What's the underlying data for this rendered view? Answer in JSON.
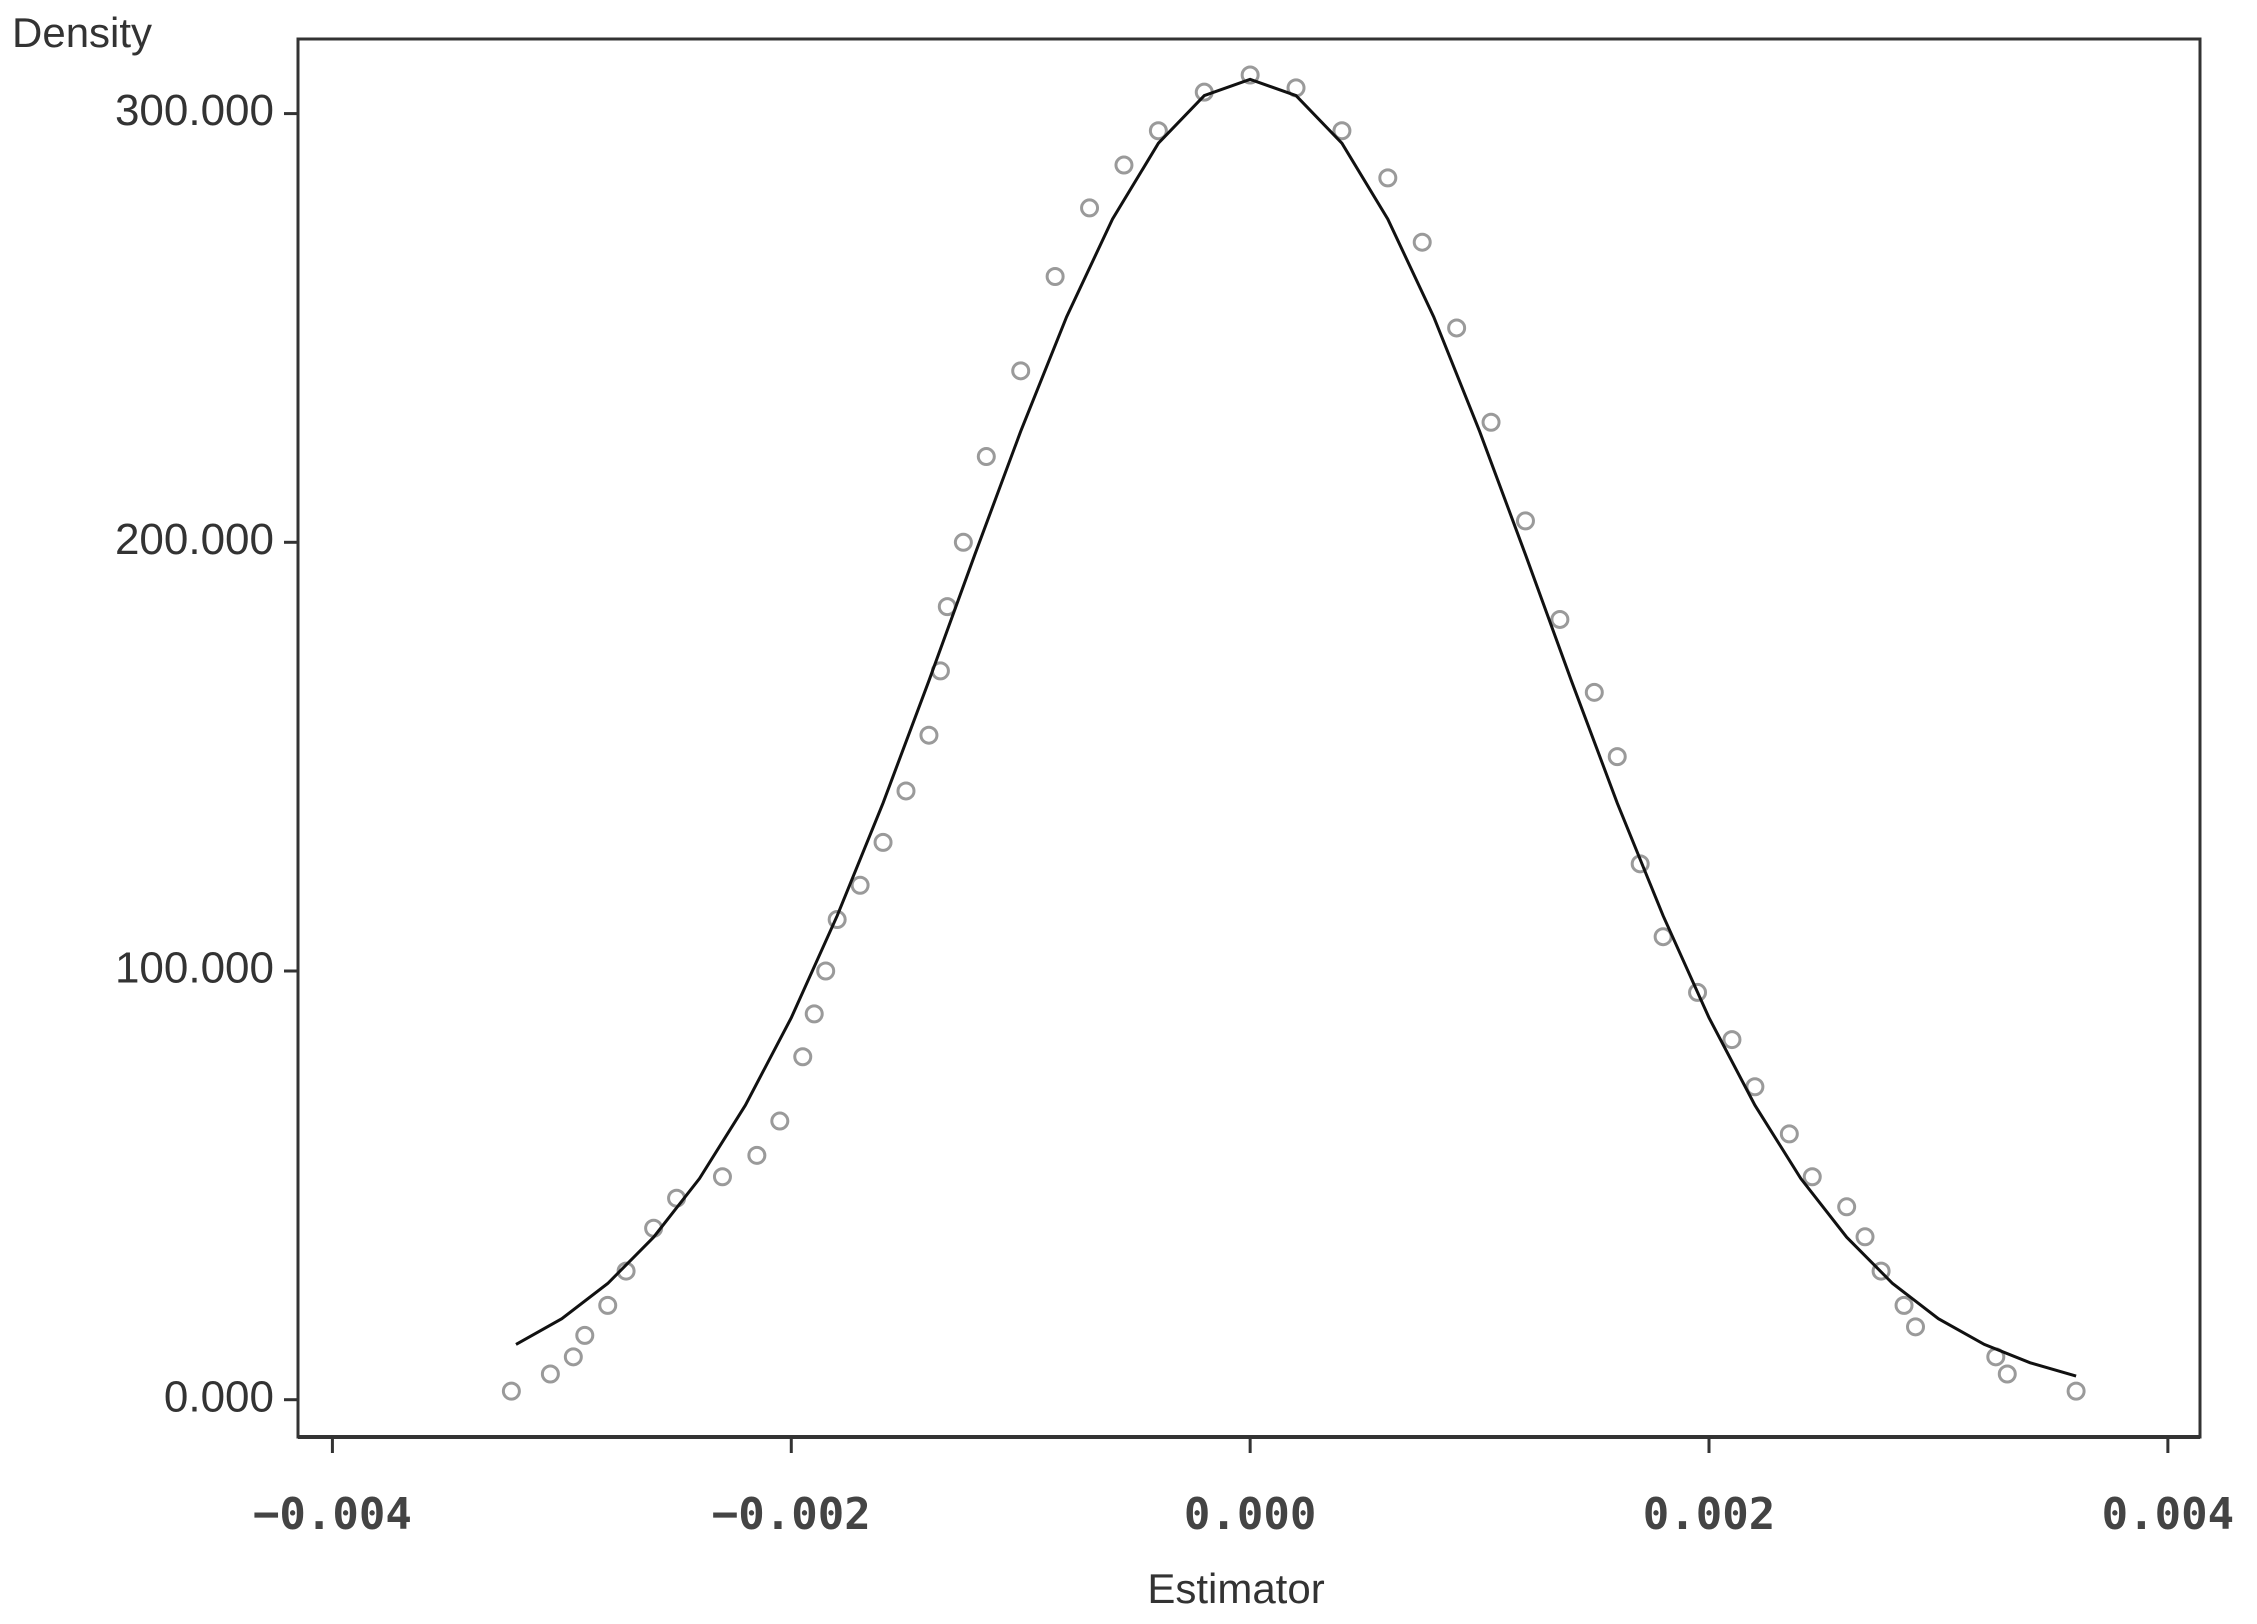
{
  "chart_data": {
    "type": "scatter",
    "ylabel": "Density",
    "xlabel": "Estimator",
    "xlim": [
      -0.00415,
      0.00414
    ],
    "ylim": [
      -8.7,
      317.4
    ],
    "xticks": [
      {
        "value": -0.004,
        "label": "−0.004"
      },
      {
        "value": -0.002,
        "label": "−0.002"
      },
      {
        "value": 0,
        "label": "0.000"
      },
      0.002,
      0.004
    ],
    "yticks": [
      {
        "value": 0,
        "label": "0.000"
      },
      {
        "value": 100,
        "label": "100.000"
      },
      {
        "value": 200,
        "label": "200.000"
      },
      {
        "value": 300,
        "label": "300.000"
      }
    ],
    "series": [
      {
        "type": "scatter",
        "color": "#9a9a9a",
        "x": [
          -0.00322,
          -0.00305,
          -0.00295,
          -0.0029,
          -0.0028,
          -0.00272,
          -0.0026,
          -0.0025,
          -0.0023,
          -0.00215,
          -0.00205,
          -0.00195,
          -0.0019,
          -0.00185,
          -0.0018,
          -0.0017,
          -0.0016,
          -0.0015,
          -0.0014,
          -0.00135,
          -0.00132,
          -0.00125,
          -0.00115,
          -0.001,
          -0.00085,
          -0.0007,
          -0.00055,
          -0.0004,
          -0.0002,
          0,
          0.0002,
          0.0004,
          0.0006,
          0.00075,
          0.0009,
          0.00105,
          0.0012,
          0.00135,
          0.0015,
          0.0016,
          0.0017,
          0.0018,
          0.00195,
          0.0021,
          0.0022,
          0.00235,
          0.00245,
          0.0026,
          0.00268,
          0.00275,
          0.00285,
          0.0029,
          0.00325,
          0.0033,
          0.0036
        ],
        "values": [
          2,
          6,
          10,
          15,
          22,
          30,
          40,
          47,
          52,
          57,
          65,
          80,
          90,
          100,
          112,
          120,
          130,
          142,
          155,
          170,
          185,
          200,
          220,
          240,
          262,
          278,
          288,
          296,
          305,
          309,
          306,
          296,
          285,
          270,
          250,
          228,
          205,
          182,
          165,
          150,
          125,
          108,
          95,
          84,
          73,
          62,
          52,
          45,
          38,
          30,
          22,
          17,
          10,
          6,
          2
        ]
      },
      {
        "type": "line",
        "color": "#111111",
        "x": [
          -0.0032,
          -0.003,
          -0.0028,
          -0.0026,
          -0.0024,
          -0.0022,
          -0.002,
          -0.0018,
          -0.0016,
          -0.0014,
          -0.0012,
          -0.001,
          -0.0008,
          -0.0006,
          -0.0004,
          -0.0002,
          0,
          0.0002,
          0.0004,
          0.0006,
          0.0008,
          0.001,
          0.0012,
          0.0014,
          0.0016,
          0.0018,
          0.002,
          0.0022,
          0.0024,
          0.0026,
          0.0028,
          0.003,
          0.0032,
          0.0034,
          0.0036
        ],
        "values": [
          12.9,
          18.9,
          27.1,
          37.9,
          51.6,
          68.7,
          89.1,
          112.9,
          139.2,
          167.7,
          197.1,
          225.9,
          252.6,
          275.4,
          293.1,
          304.2,
          308,
          304.2,
          293.1,
          275.4,
          252.6,
          225.9,
          197.1,
          167.7,
          139.2,
          112.9,
          89.1,
          68.7,
          51.6,
          37.9,
          27.1,
          18.9,
          12.9,
          8.6,
          5.5
        ]
      }
    ]
  }
}
